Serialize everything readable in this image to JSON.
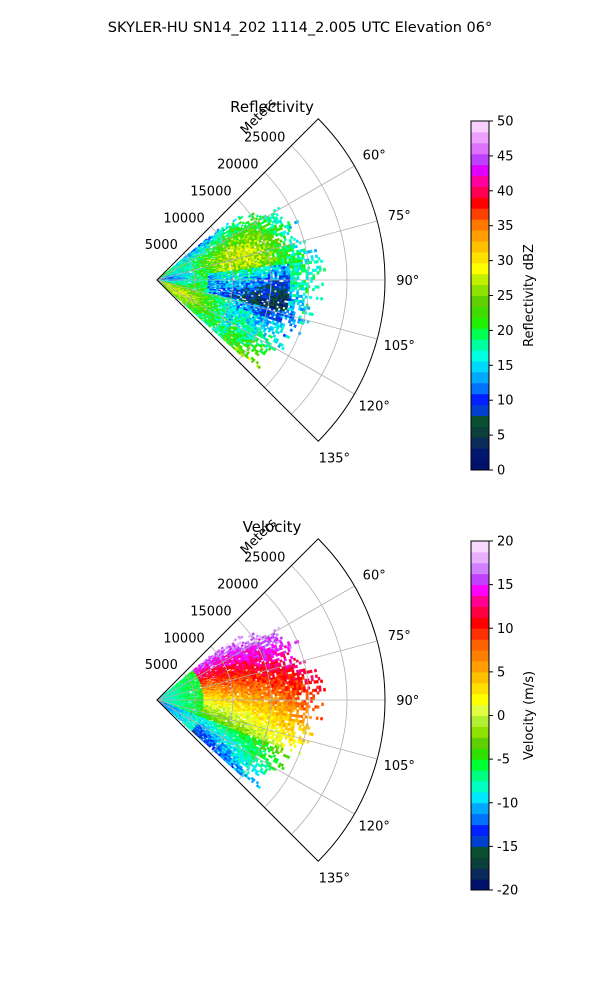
{
  "suptitle": "SKYLER-HU  SN14_202  1114_2.005 UTC Elevation 06°",
  "colors": {
    "reflectivity_scale": [
      "#00126b",
      "#00166f",
      "#0a2a5a",
      "#0b3f3a",
      "#0a5030",
      "#003fd0",
      "#0020ff",
      "#0070ff",
      "#00a8ff",
      "#00d8ff",
      "#00ffe0",
      "#00ffa0",
      "#00ff50",
      "#20f000",
      "#40dc00",
      "#60d000",
      "#90e000",
      "#c0f000",
      "#ffff00",
      "#ffe000",
      "#ffc000",
      "#ffa000",
      "#ff7800",
      "#ff4000",
      "#ff0000",
      "#ff0050",
      "#ff00a0",
      "#e000ff",
      "#c040ff",
      "#e070ff",
      "#f0a0ff",
      "#f8d0ff"
    ],
    "velocity_scale": [
      "#00126b",
      "#0a2a5a",
      "#0b3f3a",
      "#0a5030",
      "#003fd0",
      "#0020ff",
      "#0070ff",
      "#00a8ff",
      "#00e8ff",
      "#00ffc0",
      "#00ff80",
      "#00ff30",
      "#30e000",
      "#60d000",
      "#90e000",
      "#b0f030",
      "#e0ff40",
      "#ffff00",
      "#ffe000",
      "#ffc000",
      "#ffa000",
      "#ff8000",
      "#ff6000",
      "#ff3000",
      "#ff0000",
      "#ff0040",
      "#ff0090",
      "#ff00ff",
      "#c040ff",
      "#d080ff",
      "#e8b0ff",
      "#f8d8ff"
    ]
  },
  "chart_data": [
    {
      "type": "heatmap",
      "projection": "polar",
      "title": "Reflectivity",
      "radial_label": "Meters",
      "radial_ticks": [
        "5000",
        "10000",
        "15000",
        "20000",
        "25000"
      ],
      "radial_tick_values": [
        5000,
        10000,
        15000,
        20000,
        25000
      ],
      "r_max": 30000,
      "azimuth_ticks": [
        "60°",
        "75°",
        "90°",
        "105°",
        "120°",
        "135°"
      ],
      "azimuth_tick_values": [
        60,
        75,
        90,
        105,
        120,
        135
      ],
      "azimuth_range": [
        45,
        135
      ],
      "grid": true,
      "colorbar": {
        "label": "Reflectivity dBZ",
        "range": [
          0,
          50
        ],
        "ticks": [
          "0",
          "5",
          "10",
          "15",
          "20",
          "25",
          "30",
          "35",
          "40",
          "45",
          "50"
        ],
        "tick_values": [
          0,
          5,
          10,
          15,
          20,
          25,
          30,
          35,
          40,
          45,
          50
        ]
      },
      "field_summary": {
        "range_extent_m": [
          0,
          22000
        ],
        "azimuth_extent": [
          52,
          130
        ],
        "typical_values": [
          13,
          24
        ]
      }
    },
    {
      "type": "heatmap",
      "projection": "polar",
      "title": "Velocity",
      "radial_label": "Meters",
      "radial_ticks": [
        "5000",
        "10000",
        "15000",
        "20000",
        "25000"
      ],
      "radial_tick_values": [
        5000,
        10000,
        15000,
        20000,
        25000
      ],
      "r_max": 30000,
      "azimuth_ticks": [
        "60°",
        "75°",
        "90°",
        "105°",
        "120°",
        "135°"
      ],
      "azimuth_tick_values": [
        60,
        75,
        90,
        105,
        120,
        135
      ],
      "azimuth_range": [
        45,
        135
      ],
      "grid": true,
      "colorbar": {
        "label": "Velocity (m/s)",
        "range": [
          -20,
          20
        ],
        "ticks": [
          "-20",
          "-15",
          "-10",
          "-5",
          "0",
          "5",
          "10",
          "15",
          "20"
        ],
        "tick_values": [
          -20,
          -15,
          -10,
          -5,
          0,
          5,
          10,
          15,
          20
        ]
      },
      "field_summary": {
        "range_extent_m": [
          0,
          22000
        ],
        "azimuth_extent": [
          52,
          130
        ],
        "value_near_radar": -9,
        "value_far_north": 12,
        "value_far_south": -4
      }
    }
  ]
}
